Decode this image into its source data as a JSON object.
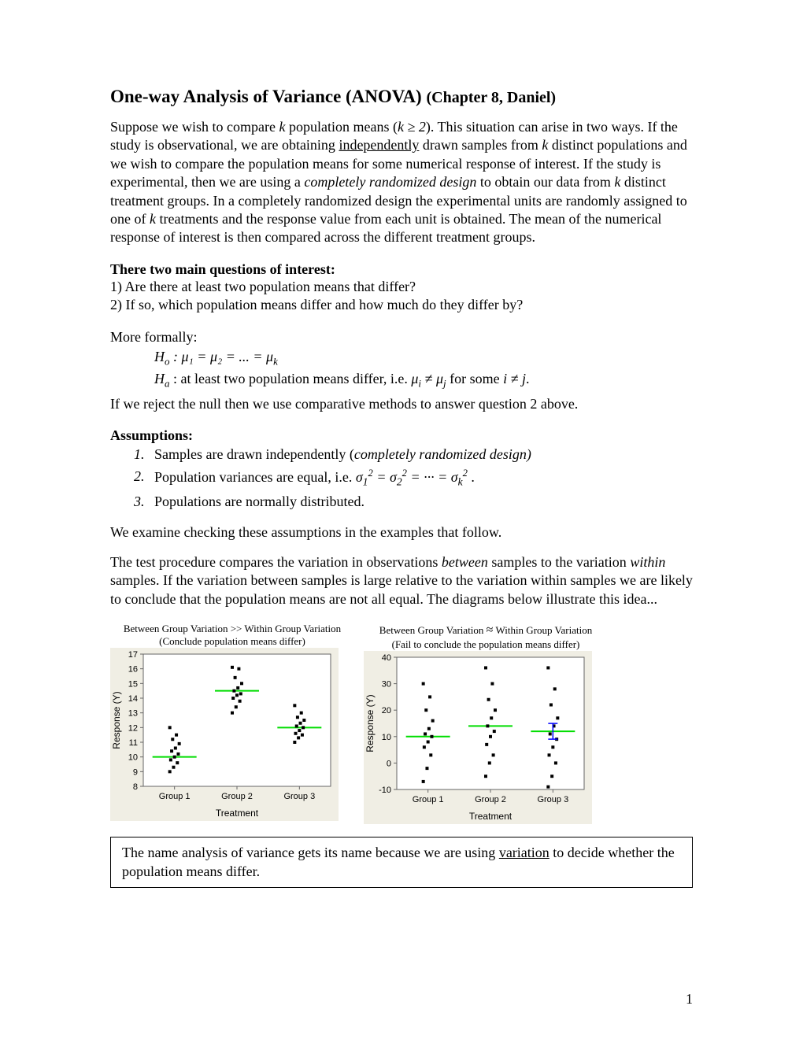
{
  "title": "One-way Analysis of Variance (ANOVA)",
  "chapter": "(Chapter 8, Daniel)",
  "intro": {
    "p1a": "Suppose we wish to compare ",
    "p1b": " population means (",
    "p1c": "). This situation can arise in two ways. If the study is observational, we are obtaining ",
    "p1d": " drawn samples from ",
    "p1e": " distinct populations and we wish to compare the population means for some numerical response of interest. If the study is experimental, then we are using a ",
    "p1f": " to obtain our data from ",
    "p1g": " distinct treatment groups. In a completely randomized design the experimental units are randomly assigned to one of ",
    "p1h": " treatments and the response value from each unit is obtained. The mean of the numerical response of interest is then compared across the different treatment groups.",
    "k": "k",
    "kge2": "k ≥ 2",
    "independently": "independently",
    "crd": "completely randomized design"
  },
  "questions": {
    "head": "There two main questions of interest:",
    "q1": "1)  Are there at least two population means that differ?",
    "q2": "2)  If so, which population means differ and how much do they differ by?"
  },
  "formally": {
    "lead": "More formally:",
    "ho_pre": "H",
    "ho_sub": "o",
    "ho_colon": " : ",
    "ho_body": "μ₁ = μ₂ = ... = μ",
    "ho_k": "k",
    "ha_pre": "H",
    "ha_sub": "a",
    "ha_text": " : at least two population means differ, i.e. ",
    "ha_mu_i": "μ",
    "ha_i": "i",
    "ha_neq": " ≠ ",
    "ha_mu_j": "μ",
    "ha_j": "j",
    "ha_for": " for some ",
    "ha_ij": "i ≠ j",
    "ha_period": ".",
    "reject": "If we reject the null then we use comparative methods to answer question 2 above."
  },
  "assumptions": {
    "head": "Assumptions:",
    "a1_num": "1.",
    "a1_text": "Samples are drawn independently (",
    "a1_ital": "completely randomized design)",
    "a2_num": "2.",
    "a2_text": "Population variances are equal, i.e. ",
    "a2_math_s": "σ",
    "a2_period": " .",
    "a3_num": "3.",
    "a3_text": "Populations are normally distributed."
  },
  "examine": "We examine checking these assumptions in the examples that follow.",
  "testproc": {
    "t1": "The test procedure compares the variation in observations ",
    "between": "between",
    "t2": " samples to the variation ",
    "within": "within",
    "t3": " samples. If the variation between samples is large relative to the variation within samples we are likely to conclude that the population means are not all equal. The diagrams below illustrate this idea..."
  },
  "charts": {
    "left": {
      "title": "Between Group Variation >> Within Group Variation",
      "sub": "(Conclude population means differ)",
      "bg": "#f0eee4",
      "plot_bg": "#ffffff",
      "xlabel": "Treatment",
      "ylabel": "Response (Y)",
      "xticks": [
        "Group 1",
        "Group 2",
        "Group 3"
      ],
      "yticks": [
        8,
        9,
        10,
        11,
        12,
        13,
        14,
        15,
        16,
        17
      ],
      "ylim": [
        8,
        17
      ],
      "mean_color": "#00dd00",
      "point_color": "#000000",
      "series": [
        {
          "x": 1,
          "mean": 10,
          "pts": [
            9.0,
            9.3,
            9.6,
            9.8,
            10.0,
            10.2,
            10.4,
            10.6,
            10.9,
            11.2,
            11.5,
            12.0
          ]
        },
        {
          "x": 2,
          "mean": 14.5,
          "pts": [
            13.0,
            13.4,
            13.8,
            14.0,
            14.2,
            14.3,
            14.5,
            14.7,
            15.0,
            15.4,
            16.0,
            16.1
          ]
        },
        {
          "x": 3,
          "mean": 12,
          "pts": [
            11.0,
            11.3,
            11.5,
            11.6,
            11.8,
            12.0,
            12.1,
            12.3,
            12.5,
            12.7,
            13.0,
            13.5
          ]
        }
      ]
    },
    "right": {
      "title_a": "Between Group Variation ",
      "title_sym": "≈",
      "title_b": " Within Group Variation",
      "sub": "(Fail to conclude the population means differ)",
      "bg": "#f0eee4",
      "plot_bg": "#ffffff",
      "xlabel": "Treatment",
      "ylabel": "Response (Y)",
      "xticks": [
        "Group 1",
        "Group 2",
        "Group 3"
      ],
      "yticks": [
        -10,
        0,
        10,
        20,
        30,
        40
      ],
      "ylim": [
        -10,
        40
      ],
      "mean_color": "#00dd00",
      "point_color": "#000000",
      "blue_color": "#0000ff",
      "series": [
        {
          "x": 1,
          "mean": 10,
          "pts": [
            -7,
            -2,
            3,
            6,
            8,
            10,
            11,
            13,
            16,
            20,
            25,
            30
          ]
        },
        {
          "x": 2,
          "mean": 14,
          "pts": [
            -5,
            0,
            3,
            7,
            10,
            12,
            14,
            17,
            20,
            24,
            30,
            36
          ]
        },
        {
          "x": 3,
          "mean": 12,
          "pts": [
            -9,
            -5,
            0,
            3,
            6,
            9,
            11,
            14,
            17,
            22,
            28,
            36
          ]
        }
      ]
    }
  },
  "note": {
    "t1": "The name analysis of variance gets its name because we are using ",
    "variation": "variation",
    "t2": " to decide whether the population means differ."
  },
  "page_num": "1"
}
